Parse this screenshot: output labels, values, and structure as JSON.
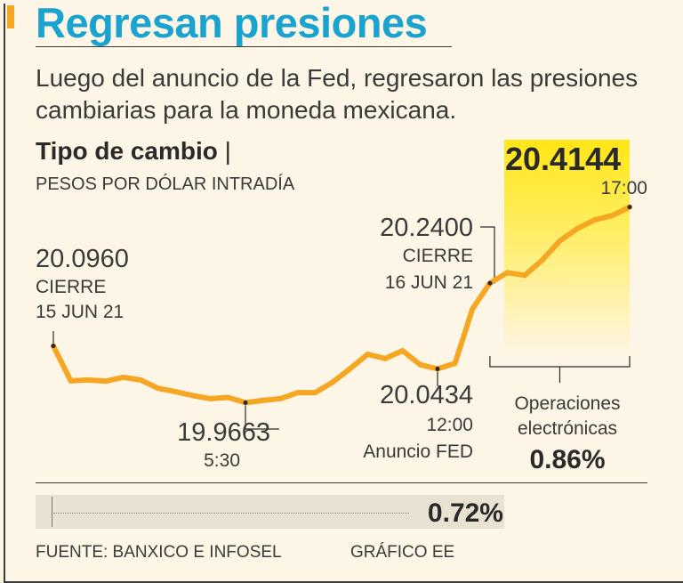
{
  "header": {
    "title": "Regresan presiones",
    "subtitle": "Luego del anuncio de la Fed, regresaron las presiones cambiarias para la moneda mexicana."
  },
  "chart_data": {
    "type": "line",
    "title": "Tipo de cambio",
    "separator": "|",
    "ylabel": "PESOS POR DÓLAR INTRADÍA",
    "ylim": [
      19.93,
      20.43
    ],
    "series": [
      {
        "name": "Tipo de cambio intradía",
        "values": [
          20.096,
          20.016,
          20.018,
          20.015,
          20.024,
          20.018,
          19.999,
          19.991,
          19.982,
          19.975,
          19.978,
          19.966,
          19.971,
          19.975,
          19.989,
          19.989,
          20.013,
          20.044,
          20.077,
          20.067,
          20.085,
          20.053,
          20.0434,
          20.056,
          20.181,
          20.24,
          20.264,
          20.258,
          20.293,
          20.337,
          20.365,
          20.385,
          20.395,
          20.4144
        ],
        "color": "#f5a623"
      }
    ],
    "annotations": [
      {
        "value": "20.0960",
        "label": "CIERRE",
        "date": "15 JUN 21",
        "index": 0
      },
      {
        "value": "19.9663",
        "time": "5:30",
        "index": 11
      },
      {
        "value": "20.0434",
        "time": "12:00",
        "note": "Anuncio FED",
        "index": 22
      },
      {
        "value": "20.2400",
        "label": "CIERRE",
        "date": "16 JUN 21",
        "index": 25
      },
      {
        "value": "20.4144",
        "time": "17:00",
        "index": 33
      }
    ],
    "electronic_ops": {
      "label_line1": "Operaciones",
      "label_line2": "electrónicas",
      "change": "0.86%",
      "start_index": 25,
      "end_index": 33
    },
    "daily_change": "0.72%",
    "highlight_color": "#ffe617"
  },
  "footer": {
    "source": "FUENTE: BANXICO E INFOSEL",
    "credit": "GRÁFICO EE"
  }
}
